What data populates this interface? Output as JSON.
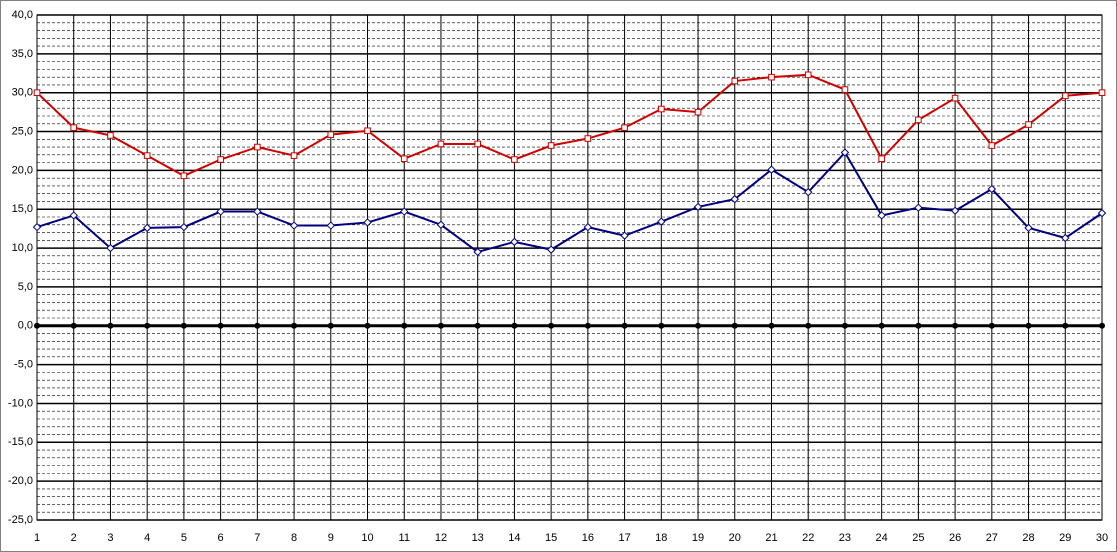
{
  "chart_data": {
    "type": "line",
    "categories": [
      "1",
      "2",
      "3",
      "4",
      "5",
      "6",
      "7",
      "8",
      "9",
      "10",
      "11",
      "12",
      "13",
      "14",
      "15",
      "16",
      "17",
      "18",
      "19",
      "20",
      "21",
      "22",
      "23",
      "24",
      "25",
      "26",
      "27",
      "28",
      "29",
      "30"
    ],
    "series": [
      {
        "color": "#d00000",
        "marker": "square",
        "values": [
          30.0,
          25.5,
          24.5,
          21.9,
          19.3,
          21.4,
          23.0,
          21.9,
          24.6,
          25.1,
          21.5,
          23.4,
          23.4,
          21.4,
          23.2,
          24.1,
          25.5,
          27.9,
          27.5,
          31.5,
          32.0,
          32.3,
          30.4,
          21.5,
          26.5,
          29.3,
          23.2,
          25.9,
          29.6,
          30.0
        ]
      },
      {
        "color": "#000080",
        "marker": "diamond",
        "values": [
          12.7,
          14.2,
          10.0,
          12.6,
          12.7,
          14.7,
          14.7,
          12.9,
          12.9,
          13.3,
          14.7,
          13.0,
          9.5,
          10.8,
          9.8,
          12.7,
          11.6,
          13.4,
          15.3,
          16.3,
          20.1,
          17.2,
          22.3,
          14.2,
          15.2,
          14.8,
          17.6,
          12.6,
          11.3,
          14.5
        ]
      }
    ],
    "ylim": [
      -25,
      40
    ],
    "yticks": [
      {
        "value": 40,
        "label": "40,0"
      },
      {
        "value": 35,
        "label": "35,0"
      },
      {
        "value": 30,
        "label": "30,0"
      },
      {
        "value": 25,
        "label": "25,0"
      },
      {
        "value": 20,
        "label": "20,0"
      },
      {
        "value": 15,
        "label": "15,0"
      },
      {
        "value": 10,
        "label": "10,0"
      },
      {
        "value": 5,
        "label": "5,0"
      },
      {
        "value": 0,
        "label": "0,0"
      },
      {
        "value": -5,
        "label": "-5,0"
      },
      {
        "value": -10,
        "label": "-10,0"
      },
      {
        "value": -15,
        "label": "-15,0"
      },
      {
        "value": -20,
        "label": "-20,0"
      },
      {
        "value": -25,
        "label": "-25,0"
      }
    ],
    "grid": true
  }
}
